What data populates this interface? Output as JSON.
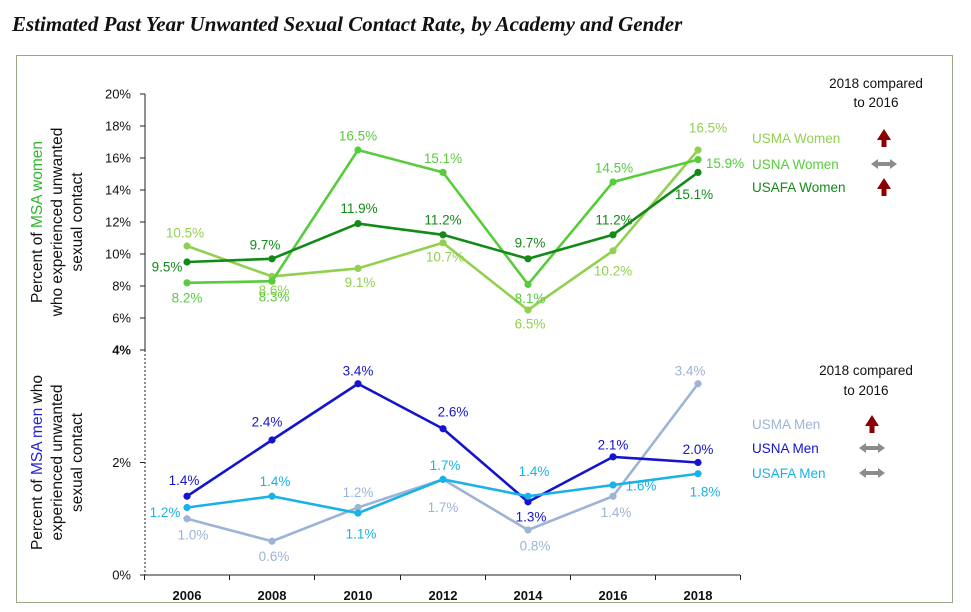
{
  "title": "Estimated Past Year Unwanted Sexual Contact Rate, by Academy and Gender",
  "chart_data": [
    {
      "type": "line",
      "title": "",
      "ylabel_lines": [
        [
          "Percent of ",
          "MSA women"
        ],
        [
          "who experienced unwanted"
        ],
        [
          "sexual contact"
        ]
      ],
      "x": [
        2006,
        2008,
        2010,
        2012,
        2014,
        2016,
        2018
      ],
      "ylim": [
        4,
        20
      ],
      "ytick_values": [
        4,
        6,
        8,
        10,
        12,
        14,
        16,
        18,
        20
      ],
      "ytick_labels": [
        "4%",
        "6%",
        "8%",
        "10%",
        "12%",
        "14%",
        "16%",
        "18%",
        "20%"
      ],
      "series": [
        {
          "name": "USMA Women",
          "color": "#92d050",
          "values": [
            10.5,
            8.6,
            9.1,
            10.7,
            6.5,
            10.2,
            16.5
          ],
          "labels": [
            "10.5%",
            "8.6%",
            "9.1%",
            "10.7%",
            "6.5%",
            "10.2%",
            "16.5%"
          ],
          "trend": "up"
        },
        {
          "name": "USNA Women",
          "color": "#58cc3c",
          "values": [
            8.2,
            8.3,
            16.5,
            15.1,
            8.1,
            14.5,
            15.9
          ],
          "labels": [
            "8.2%",
            "8.3%",
            "16.5%",
            "15.1%",
            "8.1%",
            "14.5%",
            "15.9%"
          ],
          "trend": "same"
        },
        {
          "name": "USAFA Women",
          "color": "#138a18",
          "values": [
            9.5,
            9.7,
            11.9,
            11.2,
            9.7,
            11.2,
            15.1
          ],
          "labels": [
            "9.5%",
            "9.7%",
            "11.9%",
            "11.2%",
            "9.7%",
            "11.2%",
            "15.1%"
          ],
          "trend": "up"
        }
      ],
      "comparison_header": [
        "2018 compared",
        "to 2016"
      ]
    },
    {
      "type": "line",
      "title": "",
      "ylabel_lines": [
        [
          "Percent of ",
          "MSA men",
          " who"
        ],
        [
          "experienced unwanted"
        ],
        [
          "sexual contact"
        ]
      ],
      "x": [
        2006,
        2008,
        2010,
        2012,
        2014,
        2016,
        2018
      ],
      "ylim": [
        0,
        4
      ],
      "ytick_values": [
        0,
        2
      ],
      "ytick_labels": [
        "0%",
        "2%"
      ],
      "xtick_labels": [
        "2006",
        "2008",
        "2010",
        "2012",
        "2014",
        "2016",
        "2018"
      ],
      "series": [
        {
          "name": "USMA Men",
          "color": "#9db4d6",
          "values": [
            1.0,
            0.6,
            1.2,
            1.7,
            0.8,
            1.4,
            3.4
          ],
          "labels": [
            "1.0%",
            "0.6%",
            "1.2%",
            "1.7%",
            "0.8%",
            "1.4%",
            "3.4%"
          ],
          "trend": "up"
        },
        {
          "name": "USNA Men",
          "color": "#1414cc",
          "values": [
            1.4,
            2.4,
            3.4,
            2.6,
            1.3,
            2.1,
            2.0
          ],
          "labels": [
            "1.4%",
            "2.4%",
            "3.4%",
            "2.6%",
            "1.3%",
            "2.1%",
            "2.0%"
          ],
          "trend": "same"
        },
        {
          "name": "USAFA Men",
          "color": "#19b2e6",
          "values": [
            1.2,
            1.4,
            1.1,
            1.7,
            1.4,
            1.6,
            1.8
          ],
          "labels": [
            "1.2%",
            "1.4%",
            "1.1%",
            "1.7%",
            "1.4%",
            "1.6%",
            "1.8%"
          ],
          "trend": "same"
        }
      ],
      "comparison_header": [
        "2018 compared",
        "to 2016"
      ]
    }
  ],
  "colors": {
    "up_arrow": "#8b0000",
    "same_arrow": "#8c8c8c",
    "axis": "#222222",
    "frame": "#9aa88a",
    "women_highlight": "#2db82d",
    "men_highlight": "#2222cc"
  }
}
